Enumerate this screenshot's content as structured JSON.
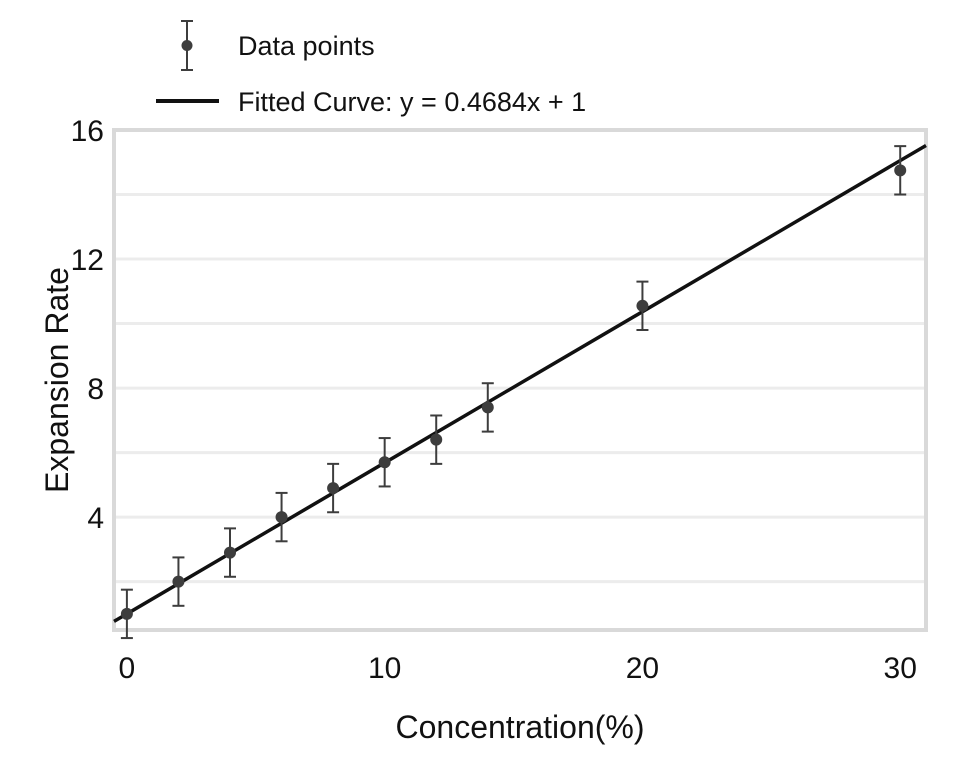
{
  "chart_data": {
    "type": "scatter",
    "xlabel": "Concentration(%)",
    "ylabel": "Expansion Rate",
    "xlim": [
      -0.5,
      31
    ],
    "ylim": [
      0.5,
      16
    ],
    "x_ticks": [
      0,
      10,
      20,
      30
    ],
    "y_ticks": [
      4,
      8,
      12,
      16
    ],
    "grid": "horizontal",
    "legend_position": "top-left, above plot",
    "series": [
      {
        "name": "Data points",
        "kind": "errorbar-points",
        "color": "#3d3d3d",
        "x": [
          0,
          2,
          4,
          6,
          8,
          10,
          12,
          14,
          20,
          30
        ],
        "y": [
          1.0,
          2.0,
          2.9,
          4.0,
          4.9,
          5.7,
          6.4,
          7.4,
          10.55,
          14.75
        ],
        "yerr": [
          0.75,
          0.75,
          0.75,
          0.75,
          0.75,
          0.75,
          0.75,
          0.75,
          0.75,
          0.75
        ]
      },
      {
        "name": "Fitted Curve: y = 0.4684x + 1",
        "kind": "line",
        "color": "#111111",
        "slope": 0.4684,
        "intercept": 1,
        "x_range": [
          -0.5,
          31
        ]
      }
    ]
  }
}
